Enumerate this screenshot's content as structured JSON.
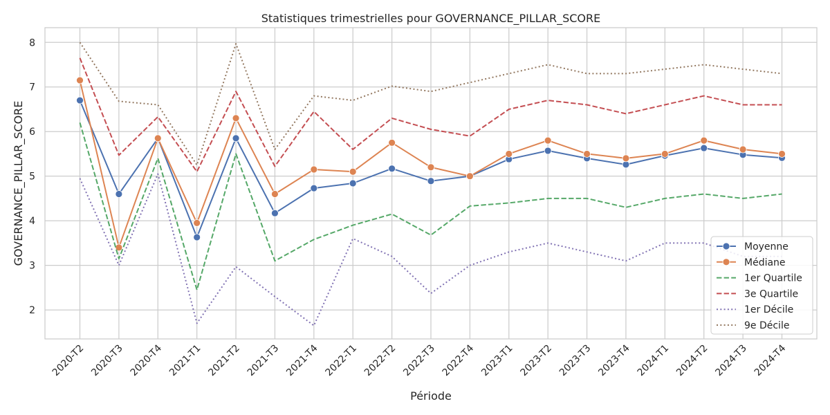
{
  "chart_data": {
    "type": "line",
    "title": "Statistiques trimestrielles pour GOVERNANCE_PILLAR_SCORE",
    "xlabel": "Période",
    "ylabel": "GOVERNANCE_PILLAR_SCORE",
    "categories": [
      "2020-T2",
      "2020-T3",
      "2020-T4",
      "2021-T1",
      "2021-T2",
      "2021-T3",
      "2021-T4",
      "2022-T1",
      "2022-T2",
      "2022-T3",
      "2022-T4",
      "2023-T1",
      "2023-T2",
      "2023-T3",
      "2023-T4",
      "2024-T1",
      "2024-T2",
      "2024-T3",
      "2024-T4"
    ],
    "y_ticks": [
      2,
      3,
      4,
      5,
      6,
      7,
      8
    ],
    "ylim": [
      1.35,
      8.33
    ],
    "grid": true,
    "legend_position": "bottom-right",
    "series": [
      {
        "name": "Moyenne",
        "color": "#4c72b0",
        "style": "solid",
        "marker": true,
        "values": [
          6.7,
          4.6,
          5.85,
          3.63,
          5.85,
          4.17,
          4.73,
          4.84,
          5.17,
          4.89,
          5.0,
          5.38,
          5.57,
          5.4,
          5.26,
          5.46,
          5.63,
          5.48,
          5.41
        ]
      },
      {
        "name": "Médiane",
        "color": "#dd8452",
        "style": "solid",
        "marker": true,
        "values": [
          7.15,
          3.4,
          5.85,
          3.95,
          6.3,
          4.6,
          5.15,
          5.1,
          5.75,
          5.2,
          5.0,
          5.5,
          5.8,
          5.5,
          5.4,
          5.5,
          5.8,
          5.6,
          5.5
        ]
      },
      {
        "name": "1er Quartile",
        "color": "#55a868",
        "style": "dashed",
        "marker": false,
        "values": [
          6.2,
          3.15,
          5.4,
          2.45,
          5.5,
          3.1,
          3.58,
          3.9,
          4.15,
          3.68,
          4.33,
          4.4,
          4.5,
          4.5,
          4.3,
          4.5,
          4.6,
          4.5,
          4.6
        ]
      },
      {
        "name": "3e Quartile",
        "color": "#c44e52",
        "style": "dashed",
        "marker": false,
        "values": [
          7.65,
          5.47,
          6.33,
          5.1,
          6.9,
          5.22,
          6.45,
          5.6,
          6.3,
          6.05,
          5.9,
          6.5,
          6.7,
          6.6,
          6.4,
          6.6,
          6.8,
          6.6,
          6.6
        ]
      },
      {
        "name": "1er Décile",
        "color": "#8172b3",
        "style": "dotted",
        "marker": false,
        "values": [
          4.95,
          3.0,
          5.05,
          1.7,
          2.97,
          2.3,
          1.65,
          3.6,
          3.2,
          2.37,
          3.0,
          3.3,
          3.5,
          3.3,
          3.1,
          3.5,
          3.5,
          3.2,
          3.2
        ]
      },
      {
        "name": "9e Décile",
        "color": "#937860",
        "style": "dotted",
        "marker": false,
        "values": [
          8.0,
          6.68,
          6.6,
          5.25,
          7.97,
          5.6,
          6.8,
          6.7,
          7.02,
          6.9,
          7.1,
          7.3,
          7.5,
          7.3,
          7.3,
          7.4,
          7.5,
          7.4,
          7.3
        ]
      }
    ]
  }
}
